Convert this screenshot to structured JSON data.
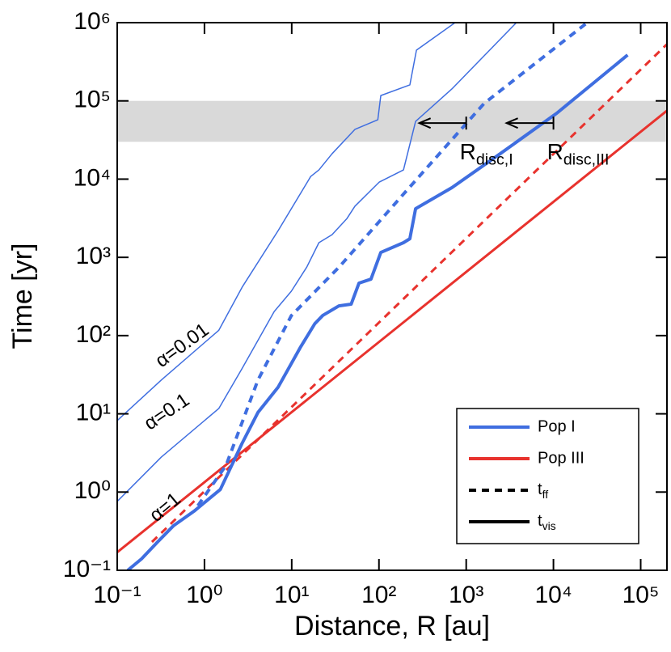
{
  "chart_data": {
    "type": "line",
    "xlabel": "Distance, R [au]",
    "ylabel": "Time [yr]",
    "xscale": "log",
    "yscale": "log",
    "xlim": [
      0.1,
      200000
    ],
    "ylim": [
      0.1,
      1000000
    ],
    "xticks": [
      {
        "value": 0.1,
        "label": "10⁻¹"
      },
      {
        "value": 1,
        "label": "10⁰"
      },
      {
        "value": 10,
        "label": "10¹"
      },
      {
        "value": 100,
        "label": "10²"
      },
      {
        "value": 1000,
        "label": "10³"
      },
      {
        "value": 10000,
        "label": "10⁴"
      },
      {
        "value": 100000,
        "label": "10⁵"
      }
    ],
    "yticks": [
      {
        "value": 0.1,
        "label": "10⁻¹"
      },
      {
        "value": 1,
        "label": "10⁰"
      },
      {
        "value": 10,
        "label": "10¹"
      },
      {
        "value": 100,
        "label": "10²"
      },
      {
        "value": 1000,
        "label": "10³"
      },
      {
        "value": 10000,
        "label": "10⁴"
      },
      {
        "value": 100000,
        "label": "10⁵"
      },
      {
        "value": 1000000,
        "label": "10⁶"
      }
    ],
    "band": {
      "ymin": 30000,
      "ymax": 100000,
      "color": "#d9d9d9"
    },
    "series": [
      {
        "color": "#e8322d",
        "width": 3,
        "dash": false,
        "x": [
          0.1,
          200000
        ],
        "values": [
          0.17,
          75000
        ]
      },
      {
        "color": "#e8322d",
        "width": 3,
        "dash": true,
        "x": [
          0.25,
          200000
        ],
        "values": [
          0.23,
          530000
        ]
      },
      {
        "color": "#3f6ee0",
        "width": 4,
        "dash": false,
        "x": [
          0.132,
          0.19,
          0.29,
          0.44,
          0.76,
          1.52,
          2.7,
          4.1,
          7.0,
          12.5,
          18.4,
          22.7,
          34.8,
          48,
          59,
          81,
          105,
          191,
          226,
          263,
          685,
          2450,
          10900,
          70800
        ],
        "values": [
          0.1,
          0.14,
          0.23,
          0.37,
          0.57,
          1.08,
          4.2,
          10.4,
          22,
          70,
          142,
          181,
          240,
          252,
          468,
          527,
          1156,
          1540,
          1730,
          4190,
          7770,
          21100,
          69500,
          386000
        ]
      },
      {
        "color": "#3f6ee0",
        "width": 4,
        "dash": true,
        "x": [
          0.84,
          1.77,
          4.1,
          9.9,
          35,
          191,
          1600,
          24400
        ],
        "values": [
          0.67,
          2.2,
          27,
          180,
          753,
          6430,
          92500,
          1000000
        ]
      },
      {
        "color": "#3f6ee0",
        "width": 1.5,
        "dash": false,
        "x": [
          0.1,
          0.32,
          1.46,
          2.7,
          6.3,
          9.9,
          14.9,
          20.5,
          29,
          43,
          53,
          101,
          191,
          263,
          685,
          3760
        ],
        "values": [
          0.76,
          2.8,
          11.7,
          38,
          203,
          369,
          753,
          1540,
          1950,
          3140,
          4500,
          9180,
          13100,
          54700,
          142000,
          1000000
        ]
      },
      {
        "color": "#3f6ee0",
        "width": 1.5,
        "dash": false,
        "x": [
          0.1,
          0.32,
          1.46,
          2.7,
          7.0,
          16.5,
          20.5,
          29,
          53,
          97,
          105,
          226,
          269,
          745
        ],
        "values": [
          8.2,
          27,
          117,
          415,
          2200,
          10800,
          13100,
          21100,
          43200,
          57400,
          117000,
          160000,
          445000,
          1000000
        ]
      }
    ],
    "arrows": [
      {
        "text": "R",
        "sub": "disc,I",
        "x_from": 1000,
        "x_to": 290,
        "y": 52000
      },
      {
        "text": "R",
        "sub": "disc,III",
        "x_from": 10000,
        "x_to": 2900,
        "y": 52000
      }
    ],
    "annotations": [
      "α=0.01",
      "α=0.1",
      "α=1"
    ],
    "legend": [
      {
        "text": "Pop I",
        "color": "#3f6ee0",
        "dash": false
      },
      {
        "text": "Pop III",
        "color": "#e8322d",
        "dash": false
      },
      {
        "text": "t",
        "sub": "ff",
        "color": "#000000",
        "dash": true
      },
      {
        "text": "t",
        "sub": "vis",
        "color": "#000000",
        "dash": false
      }
    ]
  }
}
